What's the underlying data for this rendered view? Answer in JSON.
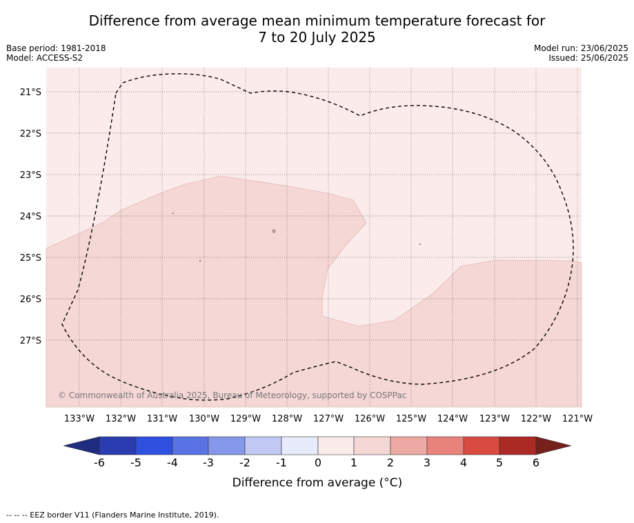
{
  "title_line1": "Difference from average mean minimum temperature forecast for",
  "title_line2": "7 to 20 July 2025",
  "base_period": "Base period: 1981-2018",
  "model": "Model: ACCESS-S2",
  "model_run": "Model run: 23/06/2025",
  "issued": "Issued: 25/06/2025",
  "map": {
    "lat_labels": [
      "21°S",
      "22°S",
      "23°S",
      "24°S",
      "25°S",
      "26°S",
      "27°S"
    ],
    "lon_labels": [
      "133°W",
      "132°W",
      "131°W",
      "130°W",
      "129°W",
      "128°W",
      "127°W",
      "126°W",
      "125°W",
      "124°W",
      "123°W",
      "122°W",
      "121°W"
    ],
    "copyright": "© Commonwealth of Australia 2025, Bureau of Meteorology, supported by COSPPac",
    "colors": {
      "bin_0_1": "#fbeceb",
      "bin_1_2": "#f5d7d5",
      "eez_line": "#000000",
      "grid_line": "#555555"
    }
  },
  "colorbar": {
    "title": "Difference from average (°C)",
    "tick_labels": [
      "-6",
      "-5",
      "-4",
      "-3",
      "-2",
      "-1",
      "0",
      "1",
      "2",
      "3",
      "4",
      "5",
      "6"
    ],
    "colors": [
      "#1f2d7e",
      "#2a3cb0",
      "#3050df",
      "#5a73e4",
      "#8597ea",
      "#c0c8f3",
      "#e8ebfb",
      "#fbeceb",
      "#f5d7d5",
      "#edaaa5",
      "#e8837c",
      "#d94a40",
      "#ac2a24",
      "#76201c"
    ]
  },
  "footnote": "-- -- -- EEZ border V11 (Flanders Marine Institute, 2019)."
}
